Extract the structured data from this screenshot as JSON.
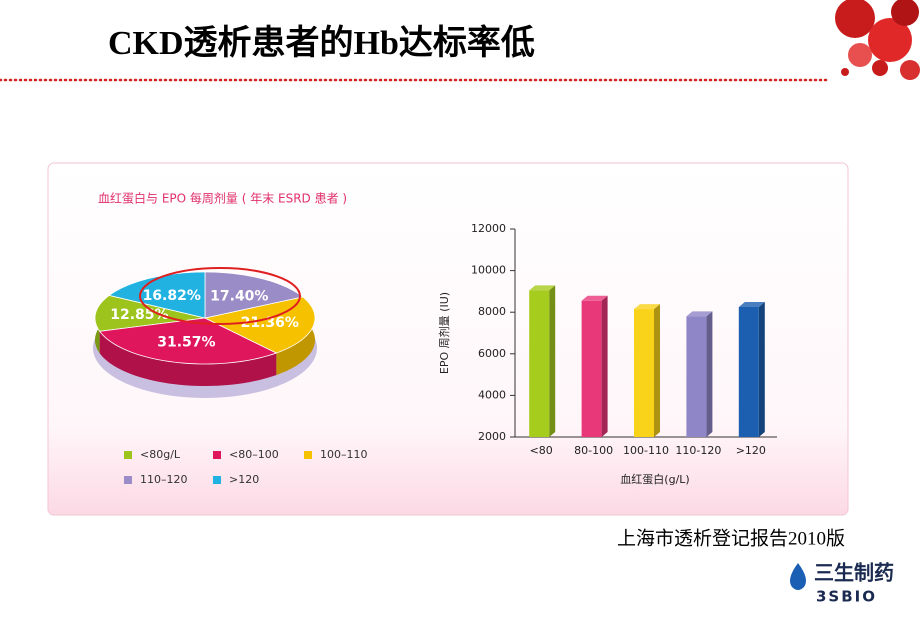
{
  "title": "CKD透析患者的Hb达标率低",
  "source": "上海市透析登记报告2010版",
  "logo": {
    "name": "三生制药",
    "subname": "3SBIO"
  },
  "chart_data": [
    {
      "type": "pie",
      "title": "血红蛋白与 EPO 每周剂量 ( 年末 ESRD 患者 )",
      "categories": [
        "<80g/L",
        "<80–100",
        "100–110",
        "110–120",
        ">120"
      ],
      "values": [
        12.85,
        31.57,
        21.36,
        17.4,
        16.82
      ],
      "value_labels": [
        "12.85%",
        "31.57%",
        "21.36%",
        "17.40%",
        "16.82%"
      ],
      "colors": [
        "#9cc41c",
        "#e0165c",
        "#f6c200",
        "#9a8cc6",
        "#22b2e2"
      ]
    },
    {
      "type": "bar",
      "categories": [
        "<80",
        "80-100",
        "100-110",
        "110-120",
        ">120"
      ],
      "values": [
        9050,
        8550,
        8150,
        7800,
        8250
      ],
      "colors": [
        "#a6cc1e",
        "#e8387a",
        "#f9d21a",
        "#8f86c8",
        "#1c5fb0"
      ],
      "ylim": [
        2000,
        12000
      ],
      "yticks": [
        2000,
        4000,
        6000,
        8000,
        10000,
        12000
      ],
      "xlabel": "血红蛋白(g/L)",
      "ylabel": "EPO 周剂量 (IU)"
    }
  ]
}
